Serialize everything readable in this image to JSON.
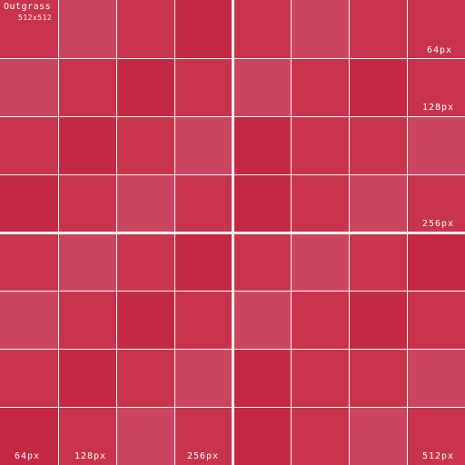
{
  "texture": {
    "title": "Outgrass",
    "size_label": "512x512",
    "columns": 8,
    "rows": 8,
    "palette": [
      "#c42842",
      "#c8344c",
      "#cc4560"
    ],
    "tile_shades": [
      [
        1,
        2,
        1,
        0,
        1,
        2,
        1,
        1
      ],
      [
        2,
        1,
        0,
        1,
        2,
        1,
        0,
        1
      ],
      [
        1,
        0,
        1,
        2,
        0,
        1,
        1,
        2
      ],
      [
        0,
        1,
        2,
        1,
        0,
        1,
        2,
        1
      ],
      [
        1,
        2,
        1,
        0,
        1,
        2,
        1,
        0
      ],
      [
        2,
        1,
        0,
        1,
        2,
        1,
        0,
        1
      ],
      [
        1,
        0,
        1,
        2,
        0,
        1,
        1,
        2
      ],
      [
        0,
        1,
        2,
        1,
        0,
        1,
        2,
        1
      ]
    ]
  },
  "scale_labels": {
    "right_64": "64px",
    "right_128": "128px",
    "right_256": "256px",
    "right_512": "512px",
    "bottom_64": "64px",
    "bottom_128": "128px",
    "bottom_256": "256px"
  }
}
